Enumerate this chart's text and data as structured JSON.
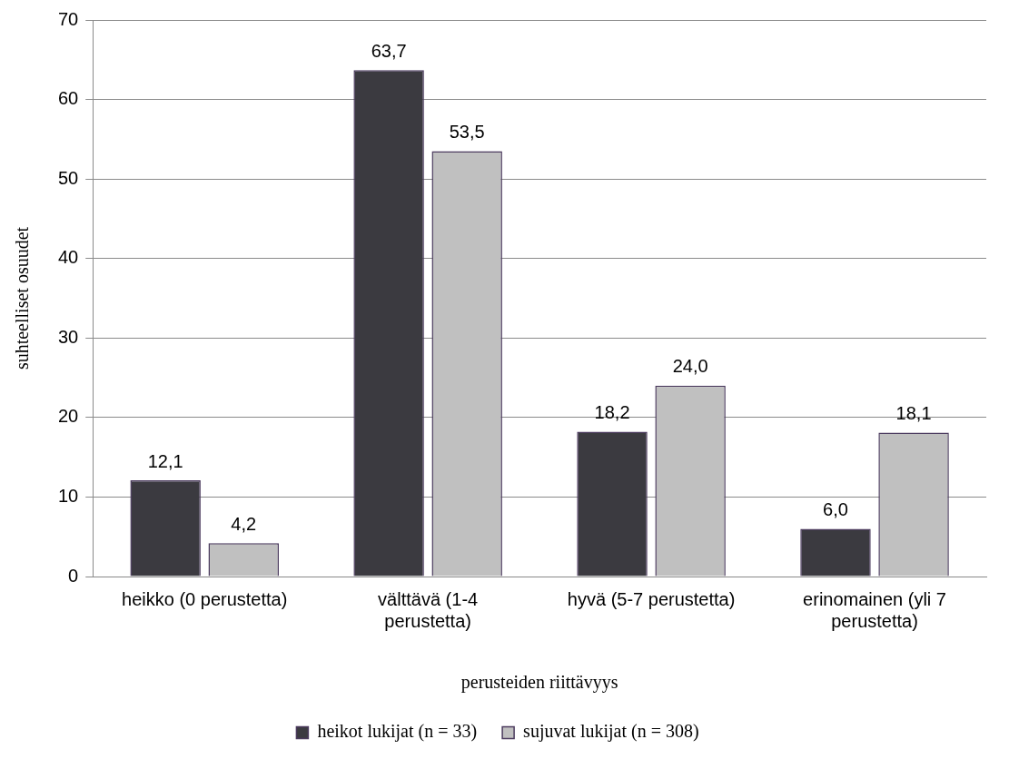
{
  "chart_data": {
    "type": "bar",
    "xlabel": "perusteiden riittävyys",
    "ylabel": "suhteelliset osuudet",
    "categories": [
      "heikko (0 perustetta)",
      "välttävä (1-4 perustetta)",
      "hyvä (5-7 perustetta)",
      "erinomainen (yli 7 perustetta)"
    ],
    "series": [
      {
        "name": "heikot lukijat (n = 33)",
        "color": "#3b3a40",
        "values": [
          12.1,
          63.7,
          18.2,
          6.0
        ],
        "value_labels": [
          "12,1",
          "63,7",
          "18,2",
          "6,0"
        ]
      },
      {
        "name": "sujuvat lukijat (n = 308)",
        "color": "#c0c0c0",
        "values": [
          4.2,
          53.5,
          24.0,
          18.1
        ],
        "value_labels": [
          "4,2",
          "53,5",
          "24,0",
          "18,1"
        ]
      }
    ],
    "ylim": [
      0,
      70
    ],
    "yticks": [
      0,
      10,
      20,
      30,
      40,
      50,
      60,
      70
    ],
    "grid": "y",
    "legend": "bottom"
  }
}
